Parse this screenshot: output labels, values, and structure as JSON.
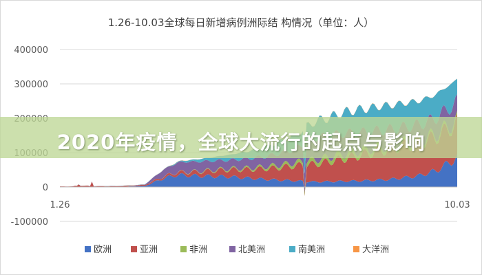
{
  "banner": {
    "headline": "2020年疫情，全球大流行的起点与影响"
  },
  "chart_data": {
    "type": "area",
    "stacked": true,
    "title": "1.26-10.03全球每日新增病例洲际结 构情况（单位：人）",
    "xlabel": "",
    "ylabel": "",
    "x_tick_labels": [
      "1.26",
      "10.03"
    ],
    "x_range": [
      "1.26",
      "10.03"
    ],
    "ylim": [
      -100000,
      400000
    ],
    "y_ticks": [
      -100000,
      0,
      100000,
      200000,
      300000,
      400000
    ],
    "y_tick_labels": [
      "-100000",
      "0",
      "100000",
      "200000",
      "300000",
      "400000"
    ],
    "grid": true,
    "legend_position": "bottom",
    "series": [
      {
        "name": "欧洲",
        "color": "#4472c4",
        "anchors": [
          [
            0,
            0
          ],
          [
            30,
            0
          ],
          [
            45,
            3000
          ],
          [
            55,
            25000
          ],
          [
            62,
            35000
          ],
          [
            75,
            32000
          ],
          [
            90,
            30000
          ],
          [
            110,
            22000
          ],
          [
            125,
            18000
          ],
          [
            135,
            15000
          ],
          [
            145,
            16000
          ],
          [
            160,
            18000
          ],
          [
            175,
            22000
          ],
          [
            190,
            32000
          ],
          [
            200,
            48000
          ],
          [
            211,
            85000
          ]
        ]
      },
      {
        "name": "亚洲",
        "color": "#c0504d",
        "anchors": [
          [
            0,
            1500
          ],
          [
            20,
            2000
          ],
          [
            40,
            2000
          ],
          [
            55,
            5000
          ],
          [
            70,
            10000
          ],
          [
            85,
            18000
          ],
          [
            100,
            25000
          ],
          [
            115,
            35000
          ],
          [
            130,
            48000
          ],
          [
            140,
            55000
          ],
          [
            150,
            65000
          ],
          [
            160,
            75000
          ],
          [
            170,
            85000
          ],
          [
            180,
            92000
          ],
          [
            190,
            95000
          ],
          [
            200,
            98000
          ],
          [
            211,
            100000
          ]
        ]
      },
      {
        "name": "非洲",
        "color": "#9bbb59",
        "anchors": [
          [
            0,
            0
          ],
          [
            60,
            300
          ],
          [
            80,
            2000
          ],
          [
            100,
            4000
          ],
          [
            120,
            8000
          ],
          [
            135,
            12000
          ],
          [
            150,
            14000
          ],
          [
            165,
            12000
          ],
          [
            180,
            9000
          ],
          [
            195,
            8000
          ],
          [
            211,
            8000
          ]
        ]
      },
      {
        "name": "北美洲",
        "color": "#8064a2",
        "anchors": [
          [
            0,
            0
          ],
          [
            45,
            1000
          ],
          [
            55,
            20000
          ],
          [
            65,
            30000
          ],
          [
            75,
            28000
          ],
          [
            90,
            25000
          ],
          [
            110,
            30000
          ],
          [
            125,
            40000
          ],
          [
            135,
            65000
          ],
          [
            150,
            60000
          ],
          [
            165,
            50000
          ],
          [
            180,
            45000
          ],
          [
            195,
            45000
          ],
          [
            211,
            55000
          ]
        ]
      },
      {
        "name": "南美洲",
        "color": "#4bacc6",
        "anchors": [
          [
            0,
            0
          ],
          [
            55,
            500
          ],
          [
            65,
            3000
          ],
          [
            80,
            10000
          ],
          [
            95,
            18000
          ],
          [
            110,
            28000
          ],
          [
            125,
            40000
          ],
          [
            140,
            50000
          ],
          [
            155,
            65000
          ],
          [
            170,
            70000
          ],
          [
            185,
            70000
          ],
          [
            200,
            68000
          ],
          [
            211,
            65000
          ]
        ]
      },
      {
        "name": "大洋洲",
        "color": "#f79646",
        "anchors": [
          [
            0,
            0
          ],
          [
            50,
            100
          ],
          [
            60,
            500
          ],
          [
            70,
            300
          ],
          [
            160,
            500
          ],
          [
            170,
            700
          ],
          [
            190,
            300
          ],
          [
            211,
            200
          ]
        ]
      }
    ]
  }
}
